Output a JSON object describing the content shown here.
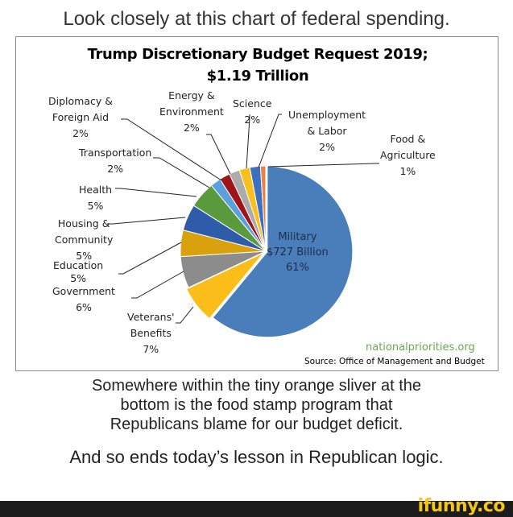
{
  "meme": {
    "headline": "Look closely at this chart of federal spending.",
    "caption_lines": [
      "Somewhere within the tiny orange sliver at the",
      "bottom is the food stamp program that",
      "Republicans blame for our budget deficit."
    ],
    "conclusion": "And so ends today’s lesson in Republican logic.",
    "watermark": "ifunny.co"
  },
  "chart": {
    "title_line1": "Trump Discretionary Budget Request 2019;",
    "title_line2": "$1.19 Trillion",
    "military_label": [
      "Military",
      "$727 Billion",
      "61%"
    ],
    "site": "nationalpriorities.org",
    "source": "Source:  Office of Management  and Budget"
  },
  "chart_data": {
    "type": "pie",
    "title": "Trump Discretionary Budget Request 2019; $1.19 Trillion",
    "categories": [
      "Military",
      "Veterans' Benefits",
      "Government",
      "Education",
      "Housing & Community",
      "Health",
      "Transportation",
      "Diplomacy & Foreign Aid",
      "Energy & Environment",
      "Science",
      "Unemployment & Labor",
      "Food & Agriculture"
    ],
    "values": [
      61,
      7,
      6,
      5,
      5,
      5,
      2,
      2,
      2,
      2,
      2,
      1
    ],
    "colors": [
      "#4a7ebb",
      "#fbbd1a",
      "#8c8c8c",
      "#d9a10e",
      "#2f5ca8",
      "#5b9a3c",
      "#5aa0dc",
      "#9e1418",
      "#ababab",
      "#f7c01e",
      "#3d6fc0",
      "#e8834a"
    ],
    "labels": [
      {
        "name": "Military",
        "lines": [
          "Military",
          "$727 Billion",
          "61%"
        ]
      },
      {
        "name": "Veterans' Benefits",
        "lines": [
          "Veterans'",
          "Benefits",
          "7%"
        ]
      },
      {
        "name": "Government",
        "lines": [
          "Government",
          "6%"
        ]
      },
      {
        "name": "Education",
        "lines": [
          "Education",
          "5%"
        ]
      },
      {
        "name": "Housing & Community",
        "lines": [
          "Housing &",
          "Community",
          "5%"
        ]
      },
      {
        "name": "Health",
        "lines": [
          "Health",
          "5%"
        ]
      },
      {
        "name": "Transportation",
        "lines": [
          "Transportation",
          "2%"
        ]
      },
      {
        "name": "Diplomacy & Foreign Aid",
        "lines": [
          "Diplomacy &",
          "Foreign Aid",
          "2%"
        ]
      },
      {
        "name": "Energy & Environment",
        "lines": [
          "Energy &",
          "Environment",
          "2%"
        ]
      },
      {
        "name": "Science",
        "lines": [
          "Science",
          "2%"
        ]
      },
      {
        "name": "Unemployment & Labor",
        "lines": [
          "Unemployment",
          "& Labor",
          "2%"
        ]
      },
      {
        "name": "Food & Agriculture",
        "lines": [
          "Food &",
          "Agriculture",
          "1%"
        ]
      }
    ],
    "units": "% of total",
    "total": "$1.19 Trillion",
    "source": "Office of Management and Budget",
    "legend": "none (data labels with leader lines)"
  }
}
